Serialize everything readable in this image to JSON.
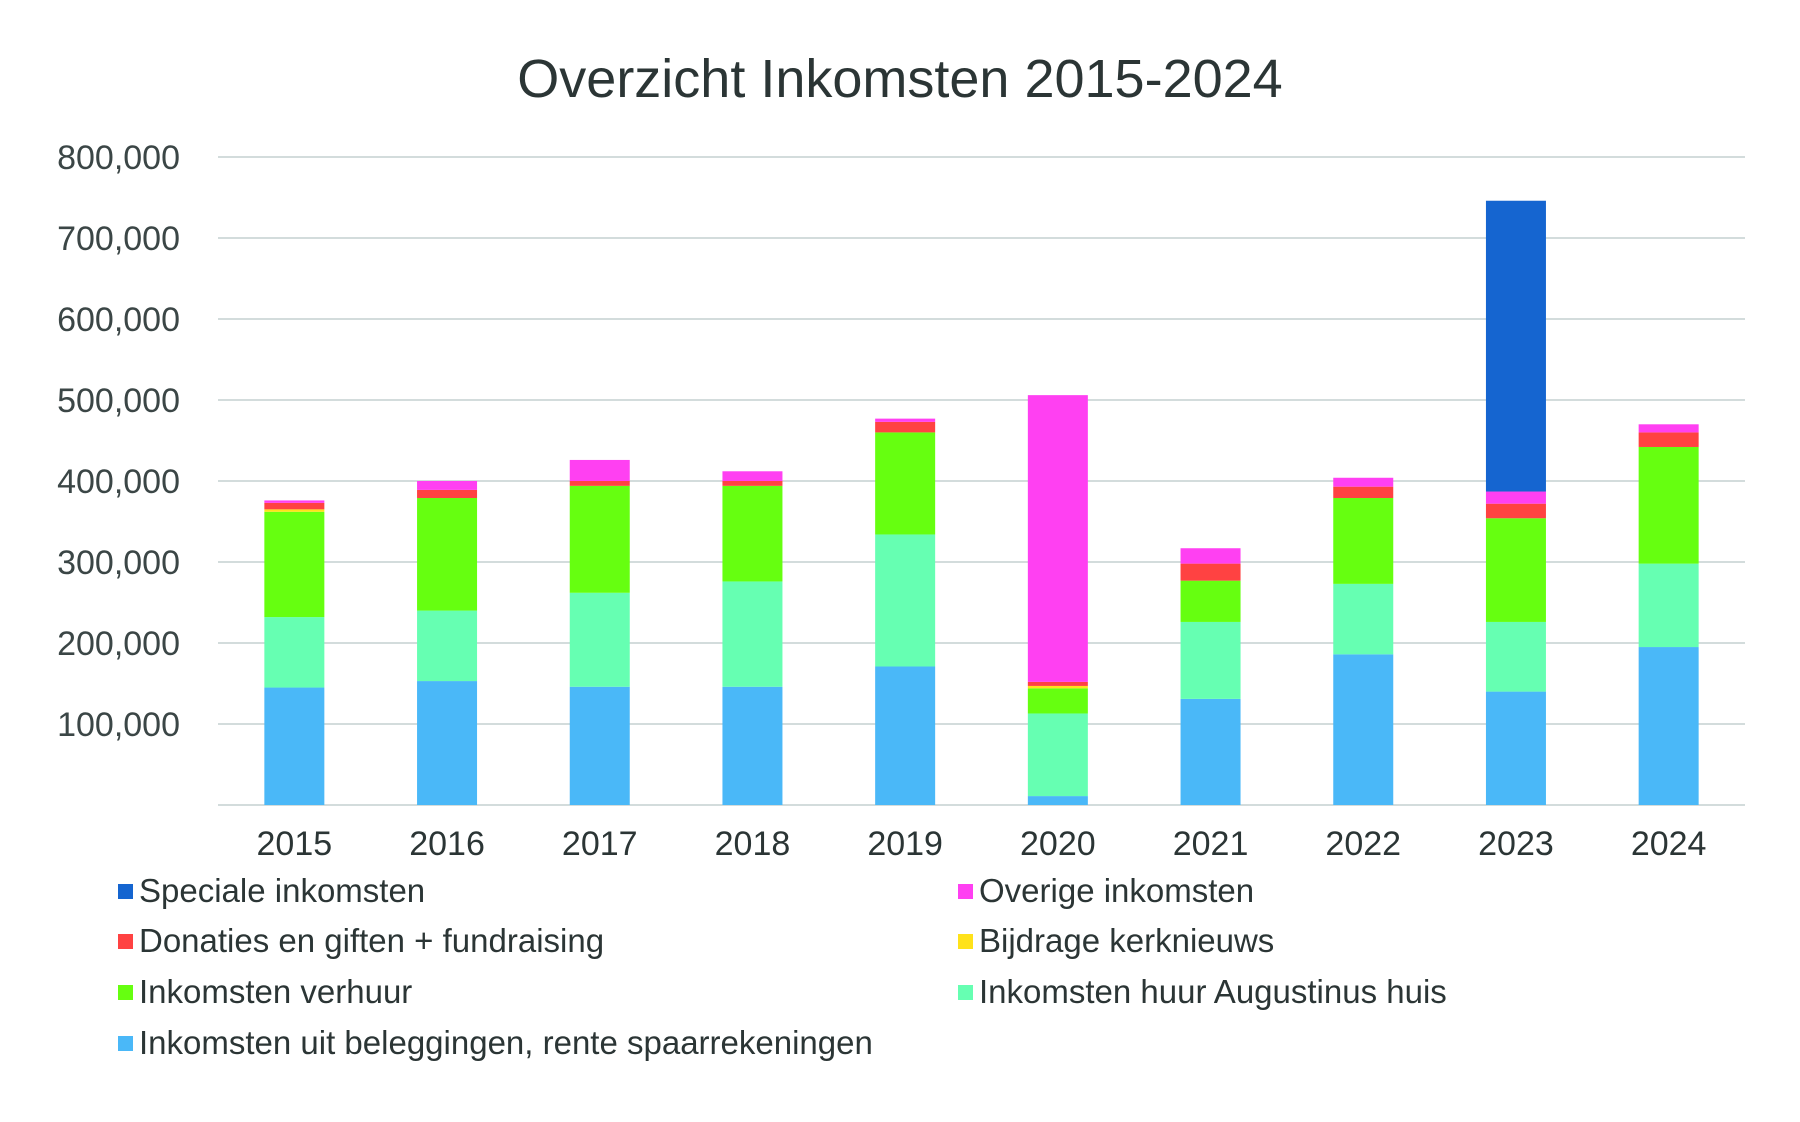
{
  "chart_data": {
    "type": "bar",
    "stacked": true,
    "title": "Overzicht Inkomsten 2015-2024",
    "xlabel": "",
    "ylabel": "",
    "ylim": [
      0,
      800000
    ],
    "yticks": [
      100000,
      200000,
      300000,
      400000,
      500000,
      600000,
      700000,
      800000
    ],
    "ytick_labels": [
      "100,000",
      "200,000",
      "300,000",
      "400,000",
      "500,000",
      "600,000",
      "700,000",
      "800,000"
    ],
    "grid": true,
    "legend_position": "bottom",
    "categories": [
      "2015",
      "2016",
      "2017",
      "2018",
      "2019",
      "2020",
      "2021",
      "2022",
      "2023",
      "2024"
    ],
    "series": [
      {
        "name": "Inkomsten uit beleggingen, rente spaarrekeningen",
        "color": "#4ab8f8",
        "values": [
          145000,
          153000,
          146000,
          146000,
          171000,
          11000,
          131000,
          186000,
          140000,
          195000
        ]
      },
      {
        "name": "Inkomsten huur Augustinus huis",
        "color": "#66ffb2",
        "values": [
          87000,
          87000,
          116000,
          130000,
          163000,
          102000,
          95000,
          87000,
          86000,
          103000
        ]
      },
      {
        "name": "Inkomsten verhuur",
        "color": "#66ff10",
        "values": [
          130000,
          139000,
          132000,
          118000,
          126000,
          31000,
          51000,
          106000,
          128000,
          144000
        ]
      },
      {
        "name": "Bijdrage kerknieuws",
        "color": "#ffe21a",
        "values": [
          3000,
          0,
          0,
          0,
          0,
          3000,
          0,
          0,
          0,
          0
        ]
      },
      {
        "name": "Donaties en giften + fundraising",
        "color": "#ff4242",
        "values": [
          8000,
          10000,
          6000,
          6000,
          13000,
          5000,
          21000,
          14000,
          18000,
          18000
        ]
      },
      {
        "name": "Overige inkomsten",
        "color": "#ff40f2",
        "values": [
          3000,
          11000,
          26000,
          12000,
          4000,
          354000,
          19000,
          11000,
          15000,
          10000
        ]
      },
      {
        "name": "Speciale inkomsten",
        "color": "#1565d0",
        "values": [
          0,
          0,
          0,
          0,
          0,
          0,
          0,
          0,
          359000,
          0
        ]
      }
    ],
    "legend_entries": [
      {
        "label": "Speciale inkomsten",
        "color": "#1565d0"
      },
      {
        "label": "Overige inkomsten",
        "color": "#ff40f2"
      },
      {
        "label": "Donaties en giften + fundraising",
        "color": "#ff4242"
      },
      {
        "label": "Bijdrage kerknieuws",
        "color": "#ffe21a"
      },
      {
        "label": "Inkomsten verhuur",
        "color": "#66ff10"
      },
      {
        "label": "Inkomsten huur Augustinus huis",
        "color": "#66ffb2"
      },
      {
        "label": "Inkomsten uit beleggingen, rente spaarrekeningen",
        "color": "#4ab8f8"
      }
    ]
  }
}
